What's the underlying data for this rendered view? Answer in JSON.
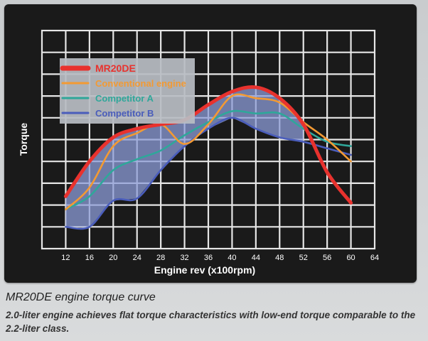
{
  "chart_data": {
    "type": "line",
    "ylabel": "Torque",
    "xlabel": "Engine rev (x100rpm)",
    "xlim": [
      8,
      64
    ],
    "x_ticks": [
      12,
      16,
      20,
      24,
      28,
      32,
      36,
      40,
      44,
      48,
      52,
      56,
      60,
      64
    ],
    "ylim": [
      0,
      10
    ],
    "grid": true,
    "legend": "top-left",
    "series": [
      {
        "name": "MR20DE",
        "color": "#e8322e",
        "points": [
          [
            12,
            2.4
          ],
          [
            16,
            4.0
          ],
          [
            20,
            5.1
          ],
          [
            24,
            5.5
          ],
          [
            28,
            5.7
          ],
          [
            32,
            5.9
          ],
          [
            36,
            6.6
          ],
          [
            40,
            7.2
          ],
          [
            44,
            7.4
          ],
          [
            48,
            6.9
          ],
          [
            52,
            5.7
          ],
          [
            56,
            3.5
          ],
          [
            60,
            2.1
          ]
        ]
      },
      {
        "name": "Conventional engine",
        "color": "#f39a33",
        "points": [
          [
            12,
            1.8
          ],
          [
            16,
            2.8
          ],
          [
            20,
            4.7
          ],
          [
            24,
            5.3
          ],
          [
            28,
            5.7
          ],
          [
            32,
            4.8
          ],
          [
            36,
            5.7
          ],
          [
            40,
            7.0
          ],
          [
            44,
            6.9
          ],
          [
            48,
            6.7
          ],
          [
            52,
            5.8
          ],
          [
            56,
            5.0
          ],
          [
            60,
            4.0
          ]
        ]
      },
      {
        "name": "Competitor A",
        "color": "#2fa79a",
        "points": [
          [
            12,
            1.8
          ],
          [
            16,
            2.4
          ],
          [
            20,
            3.6
          ],
          [
            24,
            4.1
          ],
          [
            28,
            4.5
          ],
          [
            32,
            5.2
          ],
          [
            36,
            5.8
          ],
          [
            40,
            6.3
          ],
          [
            44,
            6.2
          ],
          [
            48,
            6.2
          ],
          [
            52,
            5.5
          ],
          [
            56,
            4.9
          ],
          [
            60,
            4.7
          ]
        ]
      },
      {
        "name": "Competitor B",
        "color": "#4a5dbb",
        "points": [
          [
            12,
            1.0
          ],
          [
            16,
            1.0
          ],
          [
            20,
            2.2
          ],
          [
            24,
            2.3
          ],
          [
            28,
            3.6
          ],
          [
            32,
            4.7
          ],
          [
            36,
            5.5
          ],
          [
            40,
            6.0
          ],
          [
            44,
            5.5
          ],
          [
            48,
            5.1
          ],
          [
            52,
            4.9
          ],
          [
            56,
            4.6
          ],
          [
            60,
            4.3
          ]
        ]
      }
    ],
    "shaded_band_color": "#8c9cd8"
  },
  "caption": {
    "title": "MR20DE engine torque curve",
    "subtitle": "2.0-liter engine achieves flat torque characteristics with low-end torque comparable to the 2.2-liter class."
  }
}
